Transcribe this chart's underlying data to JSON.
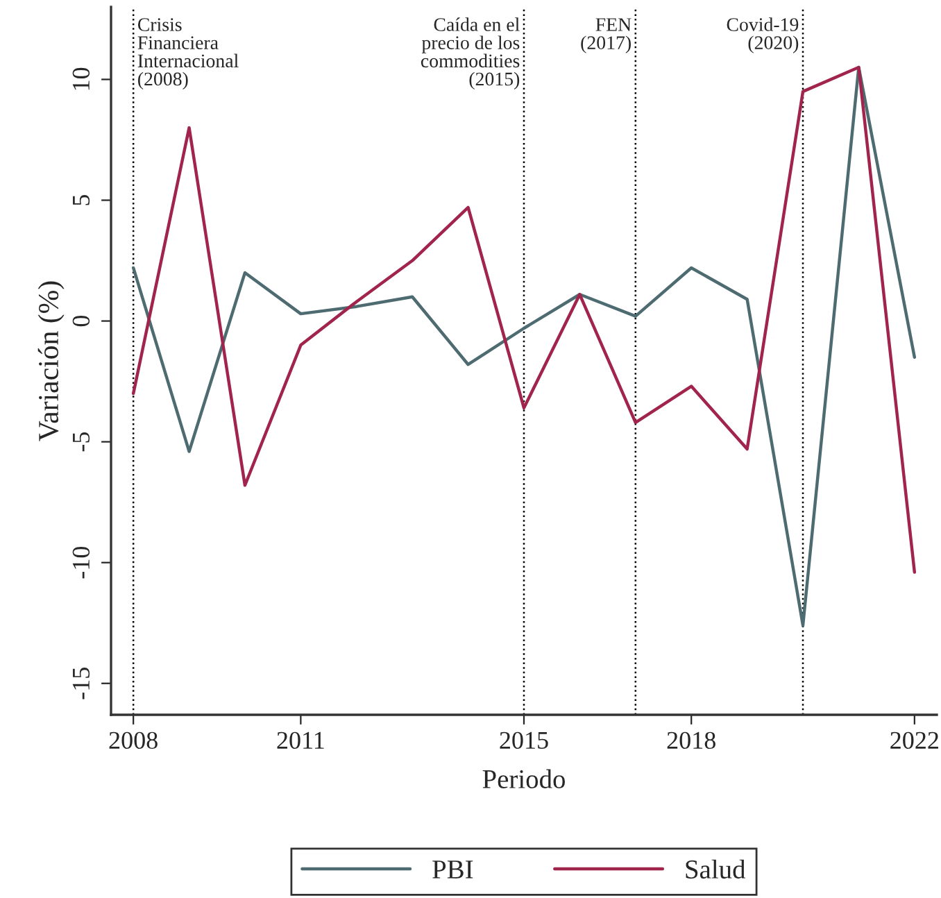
{
  "chart_data": {
    "type": "line",
    "xlabel": "Periodo",
    "ylabel": "Variación (%)",
    "x": [
      2008,
      2009,
      2010,
      2011,
      2012,
      2013,
      2014,
      2015,
      2016,
      2017,
      2018,
      2019,
      2020,
      2021,
      2022
    ],
    "series": [
      {
        "name": "PBI",
        "color": "#4d6b70",
        "values": [
          2.2,
          -5.4,
          2.0,
          0.3,
          0.6,
          1.0,
          -1.8,
          -0.3,
          1.1,
          0.2,
          2.2,
          0.9,
          -12.6,
          10.5,
          -1.5
        ]
      },
      {
        "name": "Salud",
        "color": "#a1244d",
        "values": [
          -3.0,
          8.0,
          -6.8,
          -1.0,
          0.8,
          2.5,
          4.7,
          -3.6,
          1.1,
          -4.2,
          -2.7,
          -5.3,
          9.5,
          10.5,
          -10.4
        ]
      }
    ],
    "xlim": [
      2007.6,
      2022.4
    ],
    "ylim": [
      -16.3,
      13.0
    ],
    "xticks": [
      2008,
      2011,
      2015,
      2018,
      2022
    ],
    "yticks": [
      -15,
      -10,
      -5,
      0,
      5,
      10
    ],
    "ref_lines": [
      {
        "axis": "x",
        "value": 2008,
        "label": "Crisis\nFinanciera\nInternacional\n(2008)",
        "line_style": "dotted"
      },
      {
        "axis": "x",
        "value": 2015,
        "label": "Caída en el\nprecio de los\ncommodities\n(2015)",
        "line_style": "dotted"
      },
      {
        "axis": "x",
        "value": 2017,
        "label": "FEN\n(2017)",
        "line_style": "dotted"
      },
      {
        "axis": "x",
        "value": 2020,
        "label": "Covid-19\n(2020)",
        "line_style": "dotted"
      }
    ],
    "grid": false,
    "legend": "bottom",
    "line_style": "solid",
    "marker": "none"
  }
}
